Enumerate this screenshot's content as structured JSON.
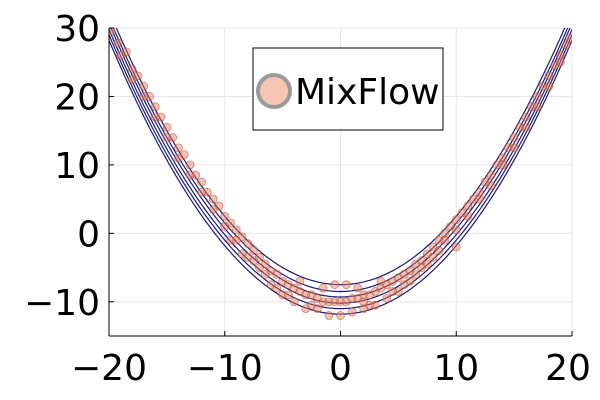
{
  "chart_data": {
    "type": "scatter",
    "title": "",
    "xlabel": "",
    "ylabel": "",
    "xlim": [
      -20,
      20
    ],
    "ylim": [
      -15,
      30
    ],
    "xticks": [
      -20,
      -10,
      0,
      10,
      20
    ],
    "xtick_labels": [
      "−20",
      "−10",
      "0",
      "10",
      "20"
    ],
    "yticks": [
      -10,
      0,
      10,
      20,
      30
    ],
    "ytick_labels": [
      "−10",
      "0",
      "10",
      "20",
      "30"
    ],
    "grid": true,
    "legend": {
      "position": "top-right",
      "entries": [
        {
          "label": "MixFlow",
          "marker": "circle",
          "color": "#e8795a"
        }
      ]
    },
    "series": [
      {
        "name": "MixFlow",
        "kind": "scatter",
        "color": "#d4623c",
        "points": [
          [
            -19.8,
            29.5
          ],
          [
            -19.2,
            27.8
          ],
          [
            -18.5,
            26.5
          ],
          [
            -18.0,
            24.0
          ],
          [
            -17.5,
            23.0
          ],
          [
            -17.0,
            21.5
          ],
          [
            -16.5,
            20.0
          ],
          [
            -16.0,
            18.5
          ],
          [
            -15.5,
            17.0
          ],
          [
            -15.0,
            15.5
          ],
          [
            -14.5,
            14.0
          ],
          [
            -14.0,
            12.5
          ],
          [
            -13.5,
            11.5
          ],
          [
            -13.0,
            10.0
          ],
          [
            -12.5,
            8.5
          ],
          [
            -12.0,
            7.5
          ],
          [
            -11.5,
            6.0
          ],
          [
            -11.0,
            5.0
          ],
          [
            -10.5,
            4.0
          ],
          [
            -10.0,
            2.5
          ],
          [
            -9.5,
            1.5
          ],
          [
            -9.0,
            0.5
          ],
          [
            -8.5,
            -0.5
          ],
          [
            -8.0,
            -1.5
          ],
          [
            -7.5,
            -2.5
          ],
          [
            -7.0,
            -3.5
          ],
          [
            -6.5,
            -4.5
          ],
          [
            -6.0,
            -5.5
          ],
          [
            -5.5,
            -6.0
          ],
          [
            -5.0,
            -7.0
          ],
          [
            -4.5,
            -7.5
          ],
          [
            -4.0,
            -8.0
          ],
          [
            -3.5,
            -8.5
          ],
          [
            -3.0,
            -9.0
          ],
          [
            -2.5,
            -9.0
          ],
          [
            -2.0,
            -9.5
          ],
          [
            -1.5,
            -10.0
          ],
          [
            -1.0,
            -10.0
          ],
          [
            -0.5,
            -10.0
          ],
          [
            0.0,
            -10.0
          ],
          [
            0.5,
            -10.0
          ],
          [
            1.0,
            -9.5
          ],
          [
            1.5,
            -9.5
          ],
          [
            2.0,
            -9.0
          ],
          [
            2.5,
            -9.0
          ],
          [
            3.0,
            -8.5
          ],
          [
            3.5,
            -8.0
          ],
          [
            4.0,
            -7.5
          ],
          [
            4.5,
            -7.0
          ],
          [
            5.0,
            -6.5
          ],
          [
            5.5,
            -6.0
          ],
          [
            6.0,
            -5.5
          ],
          [
            6.5,
            -4.5
          ],
          [
            7.0,
            -4.0
          ],
          [
            7.5,
            -3.0
          ],
          [
            8.0,
            -2.0
          ],
          [
            8.5,
            -1.0
          ],
          [
            9.0,
            0.0
          ],
          [
            9.5,
            1.0
          ],
          [
            10.0,
            2.0
          ],
          [
            10.5,
            3.0
          ],
          [
            11.0,
            4.0
          ],
          [
            11.5,
            5.0
          ],
          [
            12.0,
            6.0
          ],
          [
            12.5,
            7.5
          ],
          [
            13.0,
            8.5
          ],
          [
            13.5,
            10.0
          ],
          [
            14.0,
            11.0
          ],
          [
            14.5,
            12.5
          ],
          [
            15.0,
            14.0
          ],
          [
            15.5,
            15.5
          ],
          [
            16.0,
            17.0
          ],
          [
            16.5,
            18.5
          ],
          [
            17.0,
            20.0
          ],
          [
            17.5,
            21.5
          ],
          [
            18.0,
            23.0
          ],
          [
            18.5,
            24.5
          ],
          [
            19.0,
            26.0
          ],
          [
            19.5,
            27.5
          ],
          [
            19.8,
            28.5
          ],
          [
            -3.0,
            -11.0
          ],
          [
            -1.0,
            -12.0
          ],
          [
            1.0,
            -11.5
          ],
          [
            3.0,
            -10.5
          ],
          [
            -5.0,
            -9.0
          ],
          [
            5.0,
            -8.5
          ],
          [
            6.0,
            -7.0
          ],
          [
            -6.0,
            -7.5
          ],
          [
            -2.0,
            -11.0
          ],
          [
            2.0,
            -11.0
          ],
          [
            0.0,
            -12.0
          ],
          [
            -4.0,
            -10.0
          ],
          [
            4.0,
            -9.5
          ],
          [
            -8.0,
            -3.5
          ],
          [
            8.0,
            -3.5
          ],
          [
            -7.0,
            -5.0
          ],
          [
            7.0,
            -5.0
          ],
          [
            -9.0,
            -1.0
          ],
          [
            9.0,
            -1.0
          ],
          [
            10.0,
            0.5
          ],
          [
            -10.0,
            1.0
          ],
          [
            -11.0,
            3.5
          ],
          [
            11.0,
            2.5
          ],
          [
            -12.0,
            6.0
          ],
          [
            12.0,
            5.0
          ],
          [
            -13.0,
            8.5
          ],
          [
            13.0,
            7.0
          ],
          [
            -14.0,
            11.0
          ],
          [
            14.0,
            10.0
          ],
          [
            -15.0,
            14.0
          ],
          [
            15.0,
            12.5
          ],
          [
            -16.0,
            17.0
          ],
          [
            16.0,
            15.5
          ],
          [
            -17.0,
            20.0
          ],
          [
            17.0,
            18.5
          ],
          [
            -18.0,
            22.5
          ],
          [
            18.0,
            21.5
          ],
          [
            -19.0,
            26.0
          ],
          [
            19.0,
            25.0
          ],
          [
            -0.5,
            -7.5
          ],
          [
            0.5,
            -7.5
          ],
          [
            -1.5,
            -8.0
          ],
          [
            1.5,
            -8.0
          ],
          [
            -3.5,
            -7.0
          ],
          [
            3.5,
            -7.0
          ],
          [
            2.0,
            -10.0
          ],
          [
            10.0,
            -2.0
          ],
          [
            -9.5,
            -1.0
          ],
          [
            -8.5,
            -3.0
          ],
          [
            8.5,
            -2.5
          ],
          [
            -2.5,
            -10.5
          ],
          [
            2.5,
            -10.5
          ],
          [
            -4.5,
            -9.0
          ],
          [
            4.5,
            -8.5
          ],
          [
            -5.5,
            -8.0
          ],
          [
            5.5,
            -7.5
          ],
          [
            -6.5,
            -6.0
          ],
          [
            6.5,
            -6.0
          ],
          [
            -7.5,
            -4.0
          ],
          [
            7.5,
            -4.5
          ]
        ]
      },
      {
        "name": "",
        "kind": "contour",
        "color": "#1a1a7a",
        "curves": [
          {
            "a": 0.1,
            "b": -7.5
          },
          {
            "a": 0.1,
            "b": -8.5
          },
          {
            "a": 0.1,
            "b": -9.3
          },
          {
            "a": 0.1,
            "b": -10.2
          },
          {
            "a": 0.1,
            "b": -11.0
          },
          {
            "a": 0.1,
            "b": -11.8
          }
        ]
      }
    ]
  }
}
